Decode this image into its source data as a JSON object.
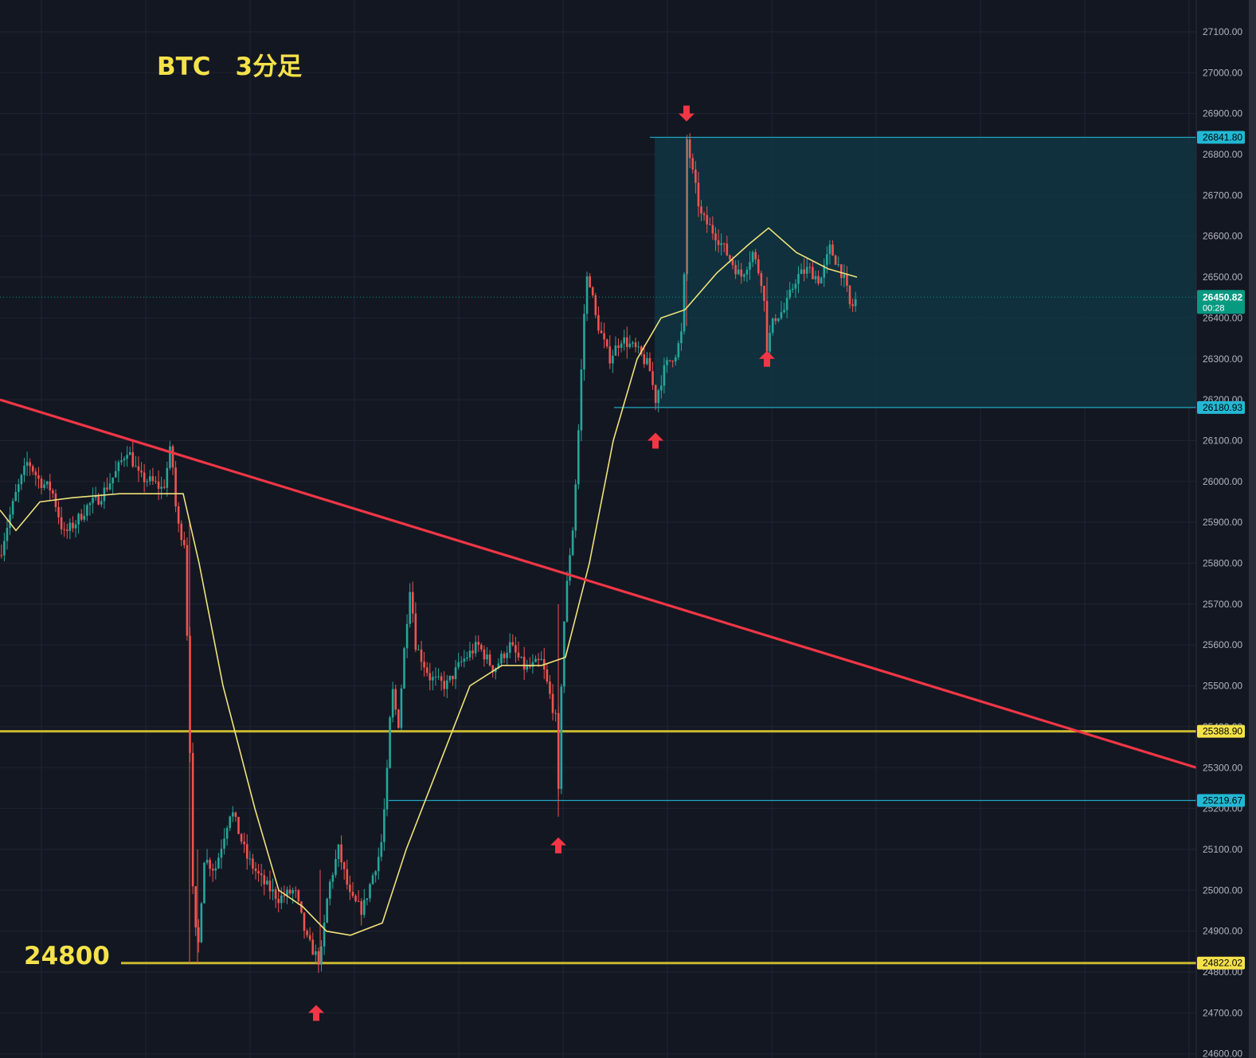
{
  "title": "BTC　3分足",
  "level_label": "24800",
  "current_price": {
    "value": "26450.82",
    "countdown": "00:28",
    "color": "#089981"
  },
  "colors": {
    "background": "#131722",
    "grid": "#1f2431",
    "axis_text": "#b2b5be",
    "candle_up": "#26a69a",
    "candle_down": "#ef5350",
    "moving_average": "#f0e27a",
    "trendline": "#f23645",
    "support_line": "#c9b731",
    "range_line": "#22a7c1",
    "range_fill": "#0f3a45",
    "arrow": "#f23645"
  },
  "chart_data": {
    "type": "candlestick",
    "symbol": "BTC",
    "timeframe": "3分足",
    "ylim": [
      24600,
      27150
    ],
    "y_ticks": [
      "27100.00",
      "27000.00",
      "26900.00",
      "26800.00",
      "26700.00",
      "26600.00",
      "26500.00",
      "26400.00",
      "26300.00",
      "26200.00",
      "26100.00",
      "26000.00",
      "25900.00",
      "25800.00",
      "25700.00",
      "25600.00",
      "25500.00",
      "25400.00",
      "25300.00",
      "25200.00",
      "25100.00",
      "25000.00",
      "24900.00",
      "24800.00",
      "24700.00",
      "24600.00"
    ],
    "price_path": [
      [
        0,
        25820
      ],
      [
        10,
        25900
      ],
      [
        20,
        25970
      ],
      [
        35,
        26050
      ],
      [
        50,
        26000
      ],
      [
        65,
        25980
      ],
      [
        80,
        25870
      ],
      [
        95,
        25900
      ],
      [
        110,
        25940
      ],
      [
        125,
        25960
      ],
      [
        145,
        26020
      ],
      [
        160,
        26080
      ],
      [
        175,
        26010
      ],
      [
        190,
        26000
      ],
      [
        205,
        25980
      ],
      [
        215,
        26090
      ],
      [
        222,
        25900
      ],
      [
        232,
        25850
      ],
      [
        238,
        25400
      ],
      [
        242,
        25000
      ],
      [
        248,
        24830
      ],
      [
        256,
        25080
      ],
      [
        270,
        25050
      ],
      [
        290,
        25200
      ],
      [
        310,
        25080
      ],
      [
        330,
        25020
      ],
      [
        350,
        24980
      ],
      [
        370,
        25000
      ],
      [
        385,
        24880
      ],
      [
        402,
        24822
      ],
      [
        412,
        25000
      ],
      [
        425,
        25100
      ],
      [
        440,
        24980
      ],
      [
        455,
        24950
      ],
      [
        470,
        25050
      ],
      [
        478,
        25100
      ],
      [
        485,
        25250
      ],
      [
        492,
        25500
      ],
      [
        500,
        25400
      ],
      [
        508,
        25600
      ],
      [
        515,
        25750
      ],
      [
        522,
        25600
      ],
      [
        540,
        25520
      ],
      [
        560,
        25500
      ],
      [
        580,
        25560
      ],
      [
        600,
        25600
      ],
      [
        620,
        25540
      ],
      [
        640,
        25600
      ],
      [
        660,
        25540
      ],
      [
        680,
        25560
      ],
      [
        690,
        25480
      ],
      [
        700,
        25400
      ],
      [
        701,
        25220
      ],
      [
        706,
        25600
      ],
      [
        714,
        25800
      ],
      [
        720,
        25900
      ],
      [
        727,
        26150
      ],
      [
        733,
        26400
      ],
      [
        738,
        26520
      ],
      [
        748,
        26400
      ],
      [
        765,
        26300
      ],
      [
        780,
        26350
      ],
      [
        800,
        26320
      ],
      [
        815,
        26280
      ],
      [
        823,
        26200
      ],
      [
        835,
        26280
      ],
      [
        850,
        26320
      ],
      [
        858,
        26380
      ],
      [
        862,
        26842
      ],
      [
        870,
        26750
      ],
      [
        880,
        26650
      ],
      [
        900,
        26600
      ],
      [
        915,
        26550
      ],
      [
        930,
        26500
      ],
      [
        945,
        26560
      ],
      [
        958,
        26480
      ],
      [
        963,
        26330
      ],
      [
        972,
        26400
      ],
      [
        985,
        26420
      ],
      [
        1000,
        26500
      ],
      [
        1015,
        26520
      ],
      [
        1030,
        26490
      ],
      [
        1042,
        26570
      ],
      [
        1055,
        26520
      ],
      [
        1062,
        26480
      ],
      [
        1068,
        26420
      ],
      [
        1076,
        26450
      ]
    ],
    "candle_count": 300,
    "moving_average_points": [
      [
        0,
        25930
      ],
      [
        20,
        25880
      ],
      [
        50,
        25950
      ],
      [
        90,
        25960
      ],
      [
        150,
        25970
      ],
      [
        230,
        25970
      ],
      [
        250,
        25800
      ],
      [
        280,
        25500
      ],
      [
        320,
        25200
      ],
      [
        350,
        25000
      ],
      [
        380,
        24960
      ],
      [
        410,
        24900
      ],
      [
        440,
        24890
      ],
      [
        480,
        24920
      ],
      [
        510,
        25100
      ],
      [
        550,
        25300
      ],
      [
        590,
        25500
      ],
      [
        630,
        25550
      ],
      [
        680,
        25550
      ],
      [
        710,
        25570
      ],
      [
        740,
        25800
      ],
      [
        770,
        26100
      ],
      [
        800,
        26300
      ],
      [
        830,
        26400
      ],
      [
        860,
        26420
      ],
      [
        900,
        26510
      ],
      [
        940,
        26580
      ],
      [
        965,
        26620
      ],
      [
        1000,
        26560
      ],
      [
        1040,
        26520
      ],
      [
        1076,
        26500
      ]
    ],
    "trendline": {
      "from": [
        0,
        26200
      ],
      "to": [
        1502,
        25300
      ]
    },
    "horizontal_levels": [
      {
        "value": 26841.8,
        "label": "26841.80",
        "kind": "range",
        "x_start": 816
      },
      {
        "value": 26180.93,
        "label": "26180.93",
        "kind": "range",
        "x_start": 771
      },
      {
        "value": 25388.9,
        "label": "25388.90",
        "kind": "support",
        "x_start": 0
      },
      {
        "value": 25219.67,
        "label": "25219.67",
        "kind": "range",
        "x_start": 488
      },
      {
        "value": 24822.02,
        "label": "24822.02",
        "kind": "support",
        "x_start": 152
      }
    ],
    "range_box": {
      "top": 26841.8,
      "bottom": 26180.93,
      "x_start": 822
    },
    "arrows": [
      {
        "x": 862,
        "price": 26900,
        "direction": "down"
      },
      {
        "x": 963,
        "price": 26300,
        "direction": "up"
      },
      {
        "x": 823,
        "price": 26100,
        "direction": "up"
      },
      {
        "x": 701,
        "price": 25110,
        "direction": "up"
      },
      {
        "x": 397,
        "price": 24700,
        "direction": "up"
      }
    ]
  }
}
